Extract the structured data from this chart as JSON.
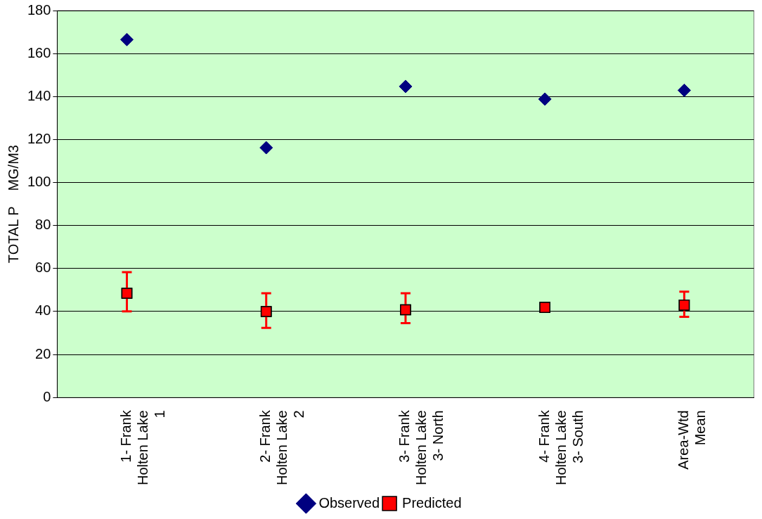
{
  "chart_data": {
    "type": "scatter",
    "ylabel": "TOTAL P    MG/M3",
    "categories": [
      "1- Frank Holten Lake 1",
      "2- Frank Holten Lake 2",
      "3- Frank Holten Lake 3- North",
      "4- Frank Holten Lake 3- South",
      "Area-Wtd Mean"
    ],
    "series": [
      {
        "name": "Observed",
        "color": "#000080",
        "marker": "diamond",
        "values": [
          166.5,
          116.2,
          144.7,
          138.8,
          142.9
        ]
      },
      {
        "name": "Predicted",
        "color": "#ff0000",
        "marker": "square",
        "values": [
          48.5,
          40,
          40.8,
          41.9,
          43
        ],
        "errors": [
          [
            40.1,
            58.3
          ],
          [
            32.4,
            48.5
          ],
          [
            34.6,
            48.5
          ],
          null,
          [
            37.5,
            49.2
          ]
        ]
      }
    ],
    "ylim": [
      0,
      180
    ],
    "yticks": [
      0,
      20,
      40,
      60,
      80,
      100,
      120,
      140,
      160,
      180
    ],
    "grid": "y",
    "legend": "bottom"
  }
}
